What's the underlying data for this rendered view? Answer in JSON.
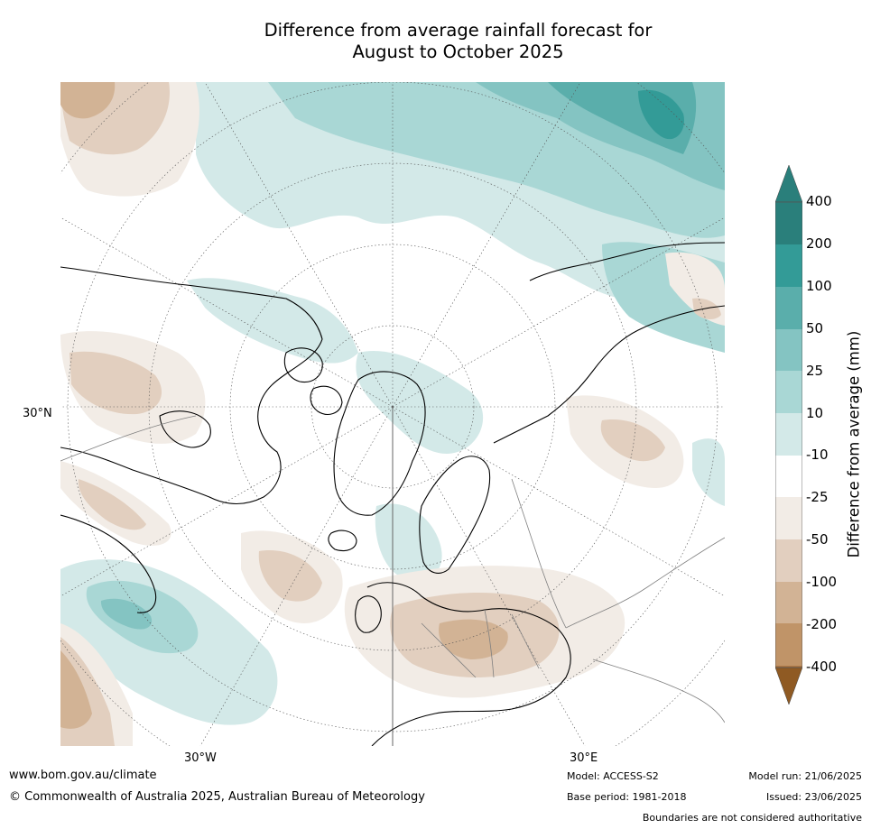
{
  "title": {
    "line1": "Difference from average rainfall forecast for",
    "line2": "August to October 2025"
  },
  "map": {
    "projection": "polar-stereographic-north",
    "tick_labels": {
      "lat_30n": "30°N",
      "lon_30w": "30°W",
      "lon_30e": "30°E"
    },
    "colors": {
      "wet_400": "#2a7f7b",
      "wet_200": "#339b97",
      "wet_100": "#5aaeab",
      "wet_50": "#84c4c2",
      "wet_25": "#a9d7d5",
      "wet_10": "#d3e9e8",
      "neutral": "#ffffff",
      "dry_10": "#f2ece6",
      "dry_25": "#e2cfbf",
      "dry_50": "#d2b395",
      "dry_100": "#c09468",
      "dry_200": "#ae7742",
      "dry_400": "#8f5a23",
      "coast": "#000000",
      "border": "#808080"
    }
  },
  "colorbar": {
    "title": "Difference from average (mm)",
    "labels": [
      "400",
      "200",
      "100",
      "50",
      "25",
      "10",
      "-10",
      "-25",
      "-50",
      "-100",
      "-200",
      "-400"
    ],
    "extend": "both"
  },
  "footer": {
    "website": "www.bom.gov.au/climate",
    "copyright": "© Commonwealth of Australia 2025, Australian Bureau of Meteorology",
    "model": "Model: ACCESS-S2",
    "base_period": "Base period: 1981-2018",
    "model_run": "Model run: 21/06/2025",
    "issued": "Issued: 23/06/2025",
    "disclaimer": "Boundaries are not considered authoritative"
  }
}
